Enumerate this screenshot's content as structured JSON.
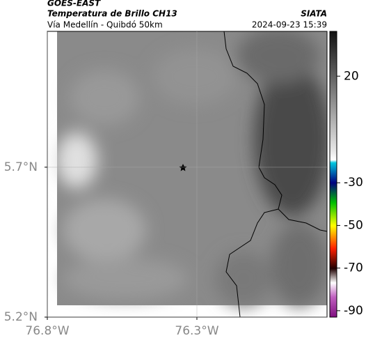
{
  "header": {
    "title": "GOES-EAST",
    "subtitle": "Temperatura de Brillo CH13",
    "source": "SIATA",
    "route": "Vía Medellín - Quibdó 50km",
    "timestamp": "2024-09-23 15:39"
  },
  "map": {
    "lonlim": [
      -76.8,
      -75.865
    ],
    "latlim": [
      5.2,
      6.153
    ],
    "lon_ticks": [
      {
        "value": -76.8,
        "label": "76.8°W"
      },
      {
        "value": -76.3,
        "label": "76.3°W"
      }
    ],
    "lat_ticks": [
      {
        "value": 5.7,
        "label": "5.7°N"
      },
      {
        "value": 5.2,
        "label": "5.2°N"
      }
    ]
  },
  "colorbar": {
    "lim": [
      41,
      -93
    ],
    "ticks": [
      20,
      -30,
      -50,
      -70,
      -90
    ]
  }
}
